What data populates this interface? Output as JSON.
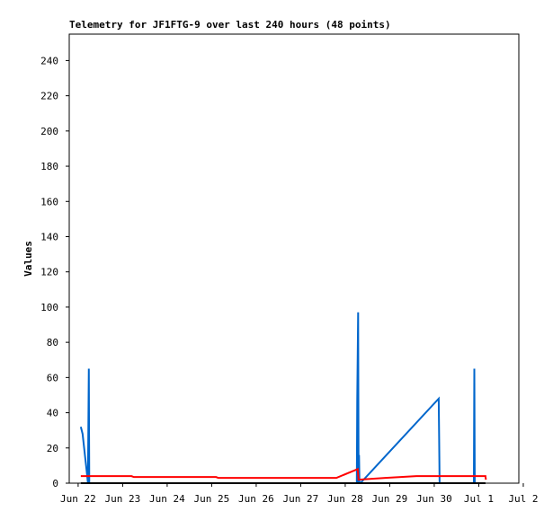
{
  "chart_data": {
    "type": "line",
    "title": "Telemetry for JF1FTG-9 over last 240 hours (48 points)",
    "y_label": "Values",
    "xlim": [
      -0.2,
      9.9
    ],
    "xticks": [
      {
        "value": 0,
        "label": "Jun 22"
      },
      {
        "value": 1,
        "label": "Jun 23"
      },
      {
        "value": 2,
        "label": "Jun 24"
      },
      {
        "value": 3,
        "label": "Jun 25"
      },
      {
        "value": 4,
        "label": "Jun 26"
      },
      {
        "value": 5,
        "label": "Jun 27"
      },
      {
        "value": 6,
        "label": "Jun 28"
      },
      {
        "value": 7,
        "label": "Jun 29"
      },
      {
        "value": 8,
        "label": "Jun 30"
      },
      {
        "value": 9,
        "label": "Jul 1"
      },
      {
        "value": 10,
        "label": "Jul 2"
      }
    ],
    "ylim": [
      0,
      255
    ],
    "yticks": [
      0,
      20,
      40,
      60,
      80,
      100,
      120,
      140,
      160,
      180,
      200,
      220,
      240
    ],
    "series": [
      {
        "color": "#0066cc",
        "x": [
          0.06,
          0.1,
          0.2,
          0.22,
          0.23,
          0.24,
          0.25,
          null,
          6.26,
          6.27,
          6.29,
          6.3,
          6.31,
          6.32,
          6.34,
          8.1,
          8.11,
          8.12,
          null,
          8.89,
          8.9,
          8.91
        ],
        "values": [
          32,
          28,
          5,
          0,
          33,
          65,
          0,
          null,
          0,
          48,
          97,
          0,
          16,
          0,
          0,
          48,
          25,
          0,
          null,
          0,
          65,
          0
        ]
      },
      {
        "color": "#ff0000",
        "x": [
          0.06,
          1.2,
          1.25,
          3.1,
          3.15,
          5.8,
          6.28,
          6.3,
          6.9,
          7.6,
          9.15,
          9.16
        ],
        "values": [
          4,
          4,
          3.5,
          3.5,
          3,
          3,
          8,
          2,
          3,
          4,
          4,
          2
        ]
      },
      {
        "color": "#000000",
        "x": [
          0.06,
          9.15
        ],
        "values": [
          0,
          0
        ]
      }
    ]
  }
}
